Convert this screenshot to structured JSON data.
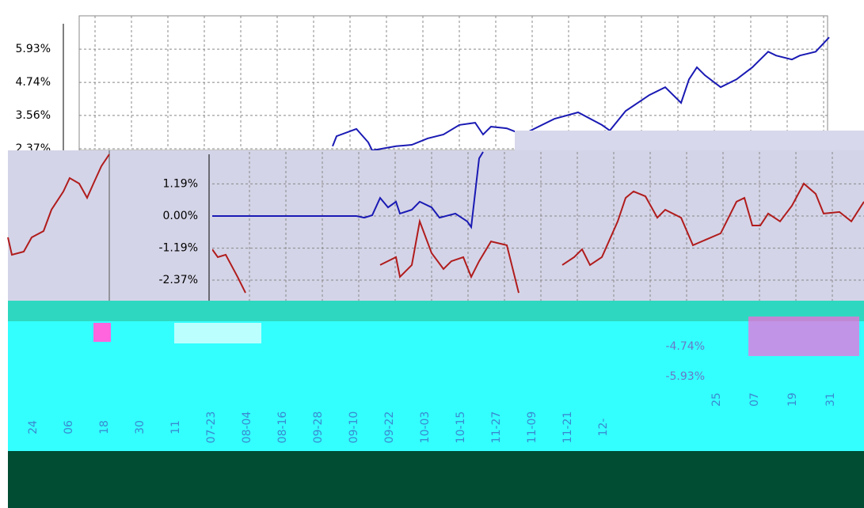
{
  "chart_data": [
    {
      "type": "line",
      "xlim": [
        0,
        945
      ],
      "ylim": [
        2.37,
        7.12
      ],
      "yticks": [
        {
          "value": 5.93,
          "label": "5.93%"
        },
        {
          "value": 4.74,
          "label": "4.74%"
        },
        {
          "value": 3.56,
          "label": "3.56%"
        },
        {
          "value": 2.37,
          "label": "2.37%"
        }
      ],
      "grid": true,
      "series": [
        {
          "color": "#1a1ab4",
          "x": [
            320,
            325,
            350,
            365,
            370,
            400,
            420,
            440,
            460,
            480,
            500,
            510,
            520,
            540,
            560,
            570,
            600,
            630,
            660,
            670,
            690,
            720,
            740,
            760,
            770,
            780,
            790,
            810,
            830,
            850,
            870,
            880,
            900,
            910,
            930,
            947
          ],
          "values": [
            2.46,
            2.82,
            3.08,
            2.6,
            2.31,
            2.46,
            2.51,
            2.74,
            2.88,
            3.22,
            3.3,
            2.88,
            3.16,
            3.1,
            2.88,
            3.02,
            3.44,
            3.67,
            3.22,
            3.02,
            3.72,
            4.29,
            4.57,
            4.01,
            4.85,
            5.28,
            5.0,
            4.57,
            4.85,
            5.28,
            5.84,
            5.7,
            5.56,
            5.7,
            5.84,
            6.35
          ]
        }
      ]
    },
    {
      "type": "line",
      "xlim": [
        0,
        823
      ],
      "ylim": [
        -3.13,
        2.37
      ],
      "yticks": [
        {
          "value": 1.19,
          "label": "1.19%"
        },
        {
          "value": 0,
          "label": "0.00%"
        },
        {
          "value": -1.19,
          "label": "-1.19%"
        },
        {
          "value": -2.37,
          "label": "-2.37%"
        }
      ],
      "grid": true,
      "series": [
        {
          "color": "#1a1ab4",
          "x": [
            0,
            182,
            192,
            202,
            212,
            222,
            232,
            237,
            252,
            262,
            277,
            287,
            307,
            322,
            327,
            337,
            342
          ],
          "values": [
            0,
            0,
            -0.06,
            0.03,
            0.67,
            0.32,
            0.53,
            0.09,
            0.23,
            0.53,
            0.32,
            -0.06,
            0.09,
            -0.2,
            -0.41,
            2.13,
            2.37
          ]
        },
        {
          "color": "#b01c1c",
          "x": [
            0,
            7,
            17,
            32,
            42,
            100,
            212,
            232,
            237,
            252,
            262,
            277,
            292,
            302,
            317,
            327,
            337,
            352,
            372,
            387,
            400,
            442,
            457,
            467,
            477,
            492,
            512,
            522,
            532,
            547,
            562,
            572,
            592,
            607,
            642,
            662,
            672,
            682,
            692,
            702,
            717,
            732,
            747,
            762,
            772,
            792,
            807,
            823
          ],
          "values": [
            -1.23,
            -1.52,
            -1.43,
            -2.25,
            -2.84,
            null,
            -1.81,
            -1.52,
            -2.25,
            -1.81,
            -0.2,
            -1.37,
            -1.96,
            -1.67,
            -1.52,
            -2.25,
            -1.67,
            -0.94,
            -1.08,
            -2.84,
            null,
            -1.81,
            -1.52,
            -1.23,
            -1.81,
            -1.52,
            -0.2,
            0.67,
            0.91,
            0.73,
            -0.06,
            0.23,
            -0.06,
            -1.08,
            -0.64,
            0.53,
            0.67,
            -0.35,
            -0.35,
            0.09,
            -0.2,
            0.38,
            1.2,
            0.82,
            0.09,
            0.15,
            -0.2,
            0.53
          ]
        }
      ]
    }
  ],
  "fragments": {
    "y_labels": [
      "-4.74%",
      "-5.93%"
    ],
    "date_labels": [
      "24",
      "06",
      "18",
      "30",
      "11",
      "07-23",
      "08-04",
      "08-16",
      "09-28",
      "09-10",
      "09-22",
      "10-03",
      "10-15",
      "11-27",
      "11-09",
      "11-21",
      "12-"
    ],
    "right_labels": [
      "25",
      "07",
      "19",
      "31"
    ]
  }
}
